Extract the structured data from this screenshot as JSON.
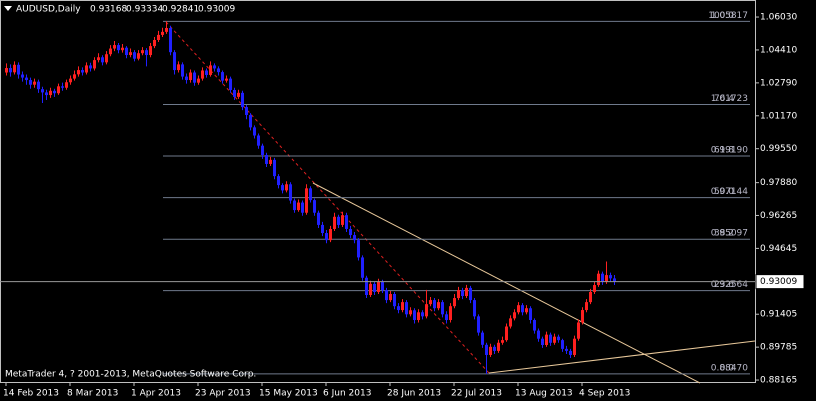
{
  "chart_data": {
    "type": "candlestick",
    "title": "AUDUSD,Daily",
    "footer": "MetaTrader 4, ? 2001-2013, MetaQuotes Software Corp.",
    "categories": [
      "14 Feb 2013",
      null,
      null,
      null,
      null,
      null,
      null,
      null,
      null,
      null,
      null,
      null,
      null,
      null,
      null,
      null,
      "8 Mar 2013",
      null,
      null,
      null,
      null,
      null,
      null,
      null,
      null,
      null,
      null,
      null,
      null,
      null,
      null,
      null,
      "1 Apr 2013",
      null,
      null,
      null,
      null,
      null,
      null,
      null,
      null,
      null,
      null,
      null,
      null,
      null,
      null,
      null,
      "23 Apr 2013",
      null,
      null,
      null,
      null,
      null,
      null,
      null,
      null,
      null,
      null,
      null,
      null,
      null,
      null,
      null,
      "15 May 2013",
      null,
      null,
      null,
      null,
      null,
      null,
      null,
      null,
      null,
      null,
      null,
      null,
      null,
      null,
      null,
      "6 Jun 2013",
      null,
      null,
      null,
      null,
      null,
      null,
      null,
      null,
      null,
      null,
      null,
      null,
      null,
      null,
      null,
      "28 Jun 2013",
      null,
      null,
      null,
      null,
      null,
      null,
      null,
      null,
      null,
      null,
      null,
      null,
      null,
      null,
      null,
      "22 Jul 2013",
      null,
      null,
      null,
      null,
      null,
      null,
      null,
      null,
      null,
      null,
      null,
      null,
      null,
      null,
      null,
      "13 Aug 2013",
      null,
      null,
      null,
      null,
      null,
      null,
      null,
      null,
      null,
      null,
      null,
      null,
      null,
      null,
      null,
      "4 Sep 2013",
      null,
      null,
      null,
      null,
      null,
      null,
      null,
      null
    ],
    "open": [
      1.033,
      1.0352,
      1.0331,
      1.0368,
      1.032,
      1.0305,
      1.0293,
      1.027,
      1.0285,
      1.0248,
      1.0232,
      1.0219,
      1.024,
      1.0228,
      1.0262,
      1.0255,
      1.0282,
      1.03,
      1.0321,
      1.0342,
      1.033,
      1.0365,
      1.035,
      1.0391,
      1.0405,
      1.038,
      1.042,
      1.0448,
      1.0465,
      1.044,
      1.0452,
      1.0416,
      1.043,
      1.0398,
      1.0425,
      1.044,
      1.0416,
      1.046,
      1.049,
      1.0515,
      1.053,
      1.0549,
      1.043,
      1.0342,
      1.037,
      1.031,
      1.0293,
      1.033,
      1.028,
      1.03,
      1.034,
      1.0318,
      1.0365,
      1.035,
      1.0332,
      1.029,
      1.03,
      1.0244,
      1.021,
      1.023,
      1.016,
      1.0121,
      1.006,
      1.002,
      0.997,
      0.9924,
      0.988,
      0.99,
      0.982,
      0.9776,
      0.975,
      0.978,
      0.97,
      0.9653,
      0.969,
      0.964,
      0.976,
      0.9702,
      0.964,
      0.958,
      0.954,
      0.9505,
      0.956,
      0.962,
      0.958,
      0.9628,
      0.956,
      0.953,
      0.9505,
      0.942,
      0.932,
      0.9235,
      0.929,
      0.925,
      0.93,
      0.9259,
      0.921,
      0.924,
      0.918,
      0.9161,
      0.92,
      0.914,
      0.916,
      0.9112,
      0.915,
      0.913,
      0.919,
      0.921,
      0.917,
      0.92,
      0.914,
      0.9112,
      0.918,
      0.922,
      0.9259,
      0.923,
      0.927,
      0.921,
      0.913,
      0.905,
      0.899,
      0.894,
      0.898,
      0.896,
      0.9,
      0.9013,
      0.908,
      0.912,
      0.915,
      0.9185,
      0.915,
      0.917,
      0.9112,
      0.906,
      0.902,
      0.8989,
      0.904,
      0.9,
      0.903,
      0.9013,
      0.897,
      0.896,
      0.894,
      0.902,
      0.91,
      0.9161,
      0.92,
      0.925,
      0.9284,
      0.934,
      0.93,
      0.9333,
      0.93168
    ],
    "high": [
      1.0375,
      1.037,
      1.0385,
      1.038,
      1.0335,
      1.032,
      1.0305,
      1.03,
      1.0295,
      1.026,
      1.0245,
      1.0255,
      1.025,
      1.0275,
      1.028,
      1.0295,
      1.0315,
      1.034,
      1.036,
      1.0355,
      1.038,
      1.0378,
      1.0405,
      1.0425,
      1.0415,
      1.0435,
      1.0465,
      1.0485,
      1.0475,
      1.047,
      1.046,
      1.0448,
      1.044,
      1.044,
      1.0455,
      1.045,
      1.0475,
      1.0505,
      1.0535,
      1.055,
      1.0582,
      1.056,
      1.044,
      1.0385,
      1.038,
      1.0325,
      1.0345,
      1.034,
      1.0315,
      1.0355,
      1.035,
      1.0385,
      1.0375,
      1.036,
      1.034,
      1.0315,
      1.031,
      1.0255,
      1.0245,
      1.024,
      1.017,
      1.013,
      1.007,
      1.003,
      0.998,
      0.9935,
      0.9915,
      0.991,
      0.983,
      0.9785,
      0.9795,
      0.979,
      0.971,
      0.9705,
      0.97,
      0.978,
      0.977,
      0.971,
      0.965,
      0.9595,
      0.9555,
      0.9575,
      0.964,
      0.963,
      0.9645,
      0.964,
      0.9575,
      0.9545,
      0.9515,
      0.943,
      0.933,
      0.9305,
      0.93,
      0.9315,
      0.931,
      0.927,
      0.9255,
      0.925,
      0.9195,
      0.9215,
      0.921,
      0.9175,
      0.917,
      0.9165,
      0.916,
      0.926,
      0.9225,
      0.922,
      0.9215,
      0.921,
      0.9155,
      0.9195,
      0.924,
      0.9275,
      0.927,
      0.9285,
      0.928,
      0.922,
      0.914,
      0.906,
      0.9,
      0.8995,
      0.899,
      0.9015,
      0.903,
      0.9095,
      0.9135,
      0.9165,
      0.92,
      0.9195,
      0.9185,
      0.918,
      0.912,
      0.907,
      0.903,
      0.9055,
      0.905,
      0.9045,
      0.904,
      0.902,
      0.8985,
      0.897,
      0.9035,
      0.9115,
      0.9175,
      0.9215,
      0.9265,
      0.93,
      0.9355,
      0.935,
      0.94,
      0.9345,
      0.93334
    ],
    "low": [
      1.0315,
      1.031,
      1.032,
      1.03,
      1.0285,
      1.027,
      1.025,
      1.0255,
      1.023,
      1.018,
      1.0195,
      1.0205,
      1.021,
      1.022,
      1.024,
      1.0245,
      1.027,
      1.029,
      1.031,
      1.0315,
      1.032,
      1.0335,
      1.034,
      1.038,
      1.0365,
      1.037,
      1.041,
      1.0435,
      1.0425,
      1.0428,
      1.04,
      1.0405,
      1.0385,
      1.039,
      1.0415,
      1.036,
      1.0405,
      1.045,
      1.048,
      1.0505,
      1.052,
      1.0415,
      1.032,
      1.033,
      1.0295,
      1.0275,
      1.028,
      1.0265,
      1.027,
      1.029,
      1.0305,
      1.031,
      1.0335,
      1.0315,
      1.0275,
      1.028,
      1.023,
      1.0195,
      1.02,
      1.0145,
      1.01,
      1.0045,
      1.0005,
      0.9955,
      0.9905,
      0.9865,
      0.987,
      0.9805,
      0.976,
      0.9735,
      0.974,
      0.9685,
      0.964,
      0.9645,
      0.9625,
      0.963,
      0.969,
      0.9625,
      0.9565,
      0.9525,
      0.949,
      0.9495,
      0.955,
      0.9565,
      0.957,
      0.9545,
      0.9515,
      0.949,
      0.9405,
      0.9305,
      0.922,
      0.9225,
      0.9235,
      0.924,
      0.9245,
      0.9195,
      0.92,
      0.9165,
      0.9145,
      0.915,
      0.9125,
      0.913,
      0.9095,
      0.91,
      0.9115,
      0.912,
      0.918,
      0.9155,
      0.916,
      0.9125,
      0.9095,
      0.91,
      0.917,
      0.921,
      0.9215,
      0.922,
      0.9195,
      0.9115,
      0.9035,
      0.8975,
      0.8847,
      0.893,
      0.8945,
      0.895,
      0.899,
      0.9005,
      0.907,
      0.911,
      0.914,
      0.9135,
      0.914,
      0.9095,
      0.9045,
      0.9005,
      0.8975,
      0.898,
      0.8985,
      0.899,
      0.9,
      0.8955,
      0.8945,
      0.8925,
      0.893,
      0.901,
      0.909,
      0.915,
      0.919,
      0.924,
      0.9275,
      0.9285,
      0.929,
      0.93,
      0.92841
    ],
    "close": [
      1.0352,
      1.0331,
      1.0368,
      1.032,
      1.0305,
      1.0293,
      1.027,
      1.0285,
      1.0248,
      1.0232,
      1.0219,
      1.024,
      1.0228,
      1.0262,
      1.0255,
      1.0282,
      1.03,
      1.0321,
      1.0342,
      1.033,
      1.0365,
      1.035,
      1.0391,
      1.0405,
      1.038,
      1.042,
      1.0448,
      1.0465,
      1.044,
      1.0452,
      1.0416,
      1.043,
      1.0398,
      1.0425,
      1.044,
      1.0416,
      1.046,
      1.049,
      1.0515,
      1.053,
      1.0549,
      1.043,
      1.0342,
      1.037,
      1.031,
      1.0293,
      1.033,
      1.028,
      1.03,
      1.034,
      1.0318,
      1.0365,
      1.035,
      1.0332,
      1.029,
      1.03,
      1.0244,
      1.021,
      1.023,
      1.016,
      1.0121,
      1.006,
      1.002,
      0.997,
      0.9924,
      0.988,
      0.99,
      0.982,
      0.9776,
      0.975,
      0.978,
      0.97,
      0.9653,
      0.969,
      0.964,
      0.976,
      0.9702,
      0.964,
      0.958,
      0.954,
      0.9505,
      0.956,
      0.962,
      0.958,
      0.9628,
      0.956,
      0.953,
      0.9505,
      0.942,
      0.932,
      0.9235,
      0.929,
      0.925,
      0.93,
      0.9259,
      0.921,
      0.924,
      0.918,
      0.9161,
      0.92,
      0.914,
      0.916,
      0.9112,
      0.915,
      0.913,
      0.919,
      0.921,
      0.917,
      0.92,
      0.914,
      0.9112,
      0.918,
      0.922,
      0.9259,
      0.923,
      0.927,
      0.921,
      0.913,
      0.905,
      0.899,
      0.894,
      0.898,
      0.896,
      0.9,
      0.9013,
      0.908,
      0.912,
      0.915,
      0.9185,
      0.915,
      0.917,
      0.9112,
      0.906,
      0.902,
      0.8989,
      0.904,
      0.9,
      0.903,
      0.9013,
      0.897,
      0.896,
      0.894,
      0.902,
      0.91,
      0.9161,
      0.92,
      0.925,
      0.9284,
      0.934,
      0.93,
      0.9333,
      0.9317,
      0.93009
    ],
    "up_color": "#ff2020",
    "down_color": "#2020ff",
    "ylim": [
      0.8802,
      1.0677
    ],
    "yticks": [
      {
        "value": 1.0603,
        "label": "1.06030"
      },
      {
        "value": 1.0441,
        "label": "1.04410"
      },
      {
        "value": 1.0279,
        "label": "1.02790"
      },
      {
        "value": 1.0117,
        "label": "1.01170"
      },
      {
        "value": 0.9955,
        "label": "0.99550"
      },
      {
        "value": 0.9788,
        "label": "0.97880"
      },
      0.96265,
      0.94645,
      0.91405,
      0.89785,
      0.88165
    ],
    "grid": false,
    "fibonacci": [
      {
        "ratio": "100.0",
        "value": 1.05817
      },
      {
        "ratio": "76.4",
        "value": 1.01723
      },
      {
        "ratio": "61.8",
        "value": {
          "value": 0.9919,
          "label": "0.99190"
        }
      },
      {
        "ratio": "50.0",
        "value": 0.97144
      },
      {
        "ratio": "38.2",
        "value": 0.95097
      },
      {
        "ratio": "23.6",
        "value": 0.92564
      },
      {
        "ratio": "0.0",
        "value": {
          "value": 0.8847,
          "label": "0.88470"
        }
      }
    ]
  }
}
